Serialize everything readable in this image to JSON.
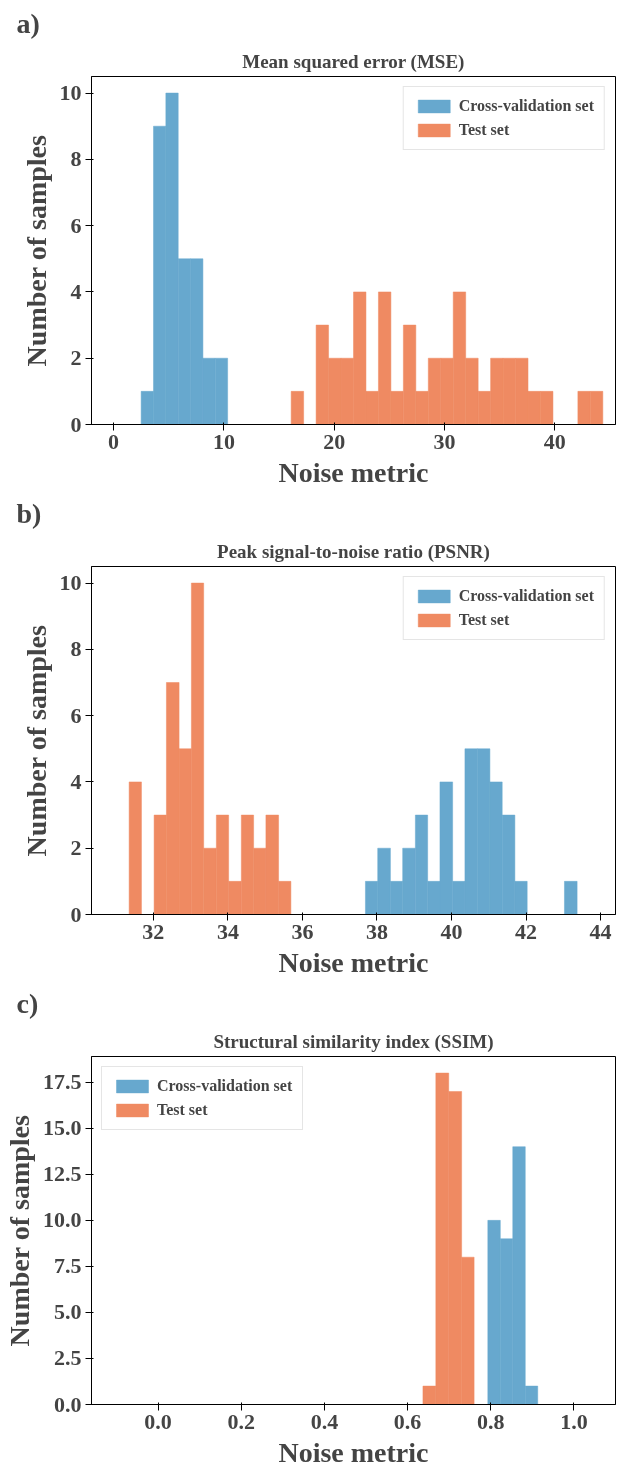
{
  "chart_data": [
    {
      "type": "histogram",
      "title": "Mean squared error (MSE)",
      "annotations": [
        "a)"
      ],
      "xlabel": "Noise metric",
      "ylabel": "Number of samples",
      "xlim": [
        -2,
        45.5
      ],
      "xticks": [
        0,
        10,
        20,
        30,
        40
      ],
      "ylim": [
        0,
        10.5
      ],
      "yticks": [
        0,
        2,
        4,
        6,
        8,
        10
      ],
      "grid": false,
      "legend": "top right",
      "bins": [
        2.5,
        3.62,
        4.74,
        5.86,
        6.98,
        8.1,
        9.22,
        10.34,
        16.1,
        17.23,
        18.36,
        19.49,
        20.62,
        21.75,
        22.88,
        24.01,
        25.14,
        26.27,
        27.4,
        28.53,
        29.66,
        30.79,
        31.92,
        33.05,
        34.18,
        35.31,
        36.44,
        37.57,
        38.7,
        39.83,
        42.09,
        43.22,
        44.35
      ],
      "series": [
        {
          "name": "Cross-validation set",
          "color": "#67a8ce",
          "values": [
            1,
            9,
            10,
            5,
            5,
            2,
            2,
            0,
            0,
            0,
            0,
            0,
            0,
            0,
            0,
            0,
            0,
            0,
            0,
            0,
            0,
            0,
            0,
            0,
            0,
            0,
            0,
            0,
            0,
            0,
            0,
            0
          ]
        },
        {
          "name": "Test set",
          "color": "#ef8a62",
          "values": [
            0,
            0,
            0,
            0,
            0,
            0,
            0,
            0,
            1,
            0,
            3,
            2,
            2,
            4,
            1,
            4,
            1,
            3,
            1,
            2,
            2,
            4,
            2,
            1,
            2,
            2,
            2,
            1,
            1,
            0,
            1,
            1
          ]
        }
      ]
    },
    {
      "type": "histogram",
      "title": "Peak signal-to-noise ratio (PSNR)",
      "annotations": [
        "b)"
      ],
      "xlabel": "Noise metric",
      "ylabel": "Number of samples",
      "xlim": [
        30.34,
        44.4
      ],
      "xticks": [
        32,
        34,
        36,
        38,
        40,
        42,
        44
      ],
      "ylim": [
        0,
        10.5
      ],
      "yticks": [
        0,
        2,
        4,
        6,
        8,
        10
      ],
      "grid": false,
      "legend": "top right",
      "bins": [
        31.35,
        31.68,
        32.02,
        32.35,
        32.69,
        33.02,
        33.35,
        33.69,
        34.02,
        34.36,
        34.69,
        35.02,
        35.36,
        35.69,
        37.69,
        38.02,
        38.36,
        38.69,
        39.03,
        39.36,
        39.69,
        40.03,
        40.36,
        40.7,
        41.03,
        41.36,
        41.7,
        42.03,
        43.03,
        43.37
      ],
      "series": [
        {
          "name": "Cross-validation set",
          "color": "#67a8ce",
          "values": [
            0,
            0,
            0,
            0,
            0,
            0,
            0,
            0,
            0,
            0,
            0,
            0,
            0,
            0,
            1,
            2,
            1,
            2,
            3,
            1,
            4,
            1,
            5,
            5,
            4,
            3,
            1,
            0,
            1
          ]
        },
        {
          "name": "Test set",
          "color": "#ef8a62",
          "values": [
            4,
            0,
            3,
            7,
            5,
            10,
            2,
            3,
            1,
            3,
            2,
            3,
            1,
            0,
            0,
            0,
            0,
            0,
            0,
            0,
            0,
            0,
            0,
            0,
            0,
            0,
            0,
            0,
            0
          ]
        }
      ]
    },
    {
      "type": "histogram",
      "title": "Structural similarity index (SSIM)",
      "annotations": [
        "c)"
      ],
      "xlabel": "Noise metric",
      "ylabel": "Number of samples",
      "xlim": [
        -0.16,
        1.1
      ],
      "xticks": [
        {
          "value": 0,
          "label": "0.0"
        },
        0.2,
        0.4,
        0.6,
        0.8,
        {
          "value": 1,
          "label": "1.0"
        }
      ],
      "ylim": [
        0,
        18.9
      ],
      "yticks": [
        {
          "value": 0,
          "label": "0.0"
        },
        2.5,
        {
          "value": 5,
          "label": "5.0"
        },
        7.5,
        {
          "value": 10,
          "label": "10.0"
        },
        12.5,
        {
          "value": 15,
          "label": "15.0"
        },
        17.5
      ],
      "grid": false,
      "legend": "top left",
      "bins": [
        0.637,
        0.668,
        0.699,
        0.73,
        0.76,
        0.793,
        0.823,
        0.853,
        0.883,
        0.913
      ],
      "series": [
        {
          "name": "Cross-validation set",
          "color": "#67a8ce",
          "values": [
            0,
            0,
            0,
            0,
            0,
            10,
            9,
            14,
            1
          ]
        },
        {
          "name": "Test set",
          "color": "#ef8a62",
          "values": [
            1,
            18,
            17,
            8,
            0,
            0,
            0,
            0,
            0
          ]
        }
      ]
    }
  ]
}
